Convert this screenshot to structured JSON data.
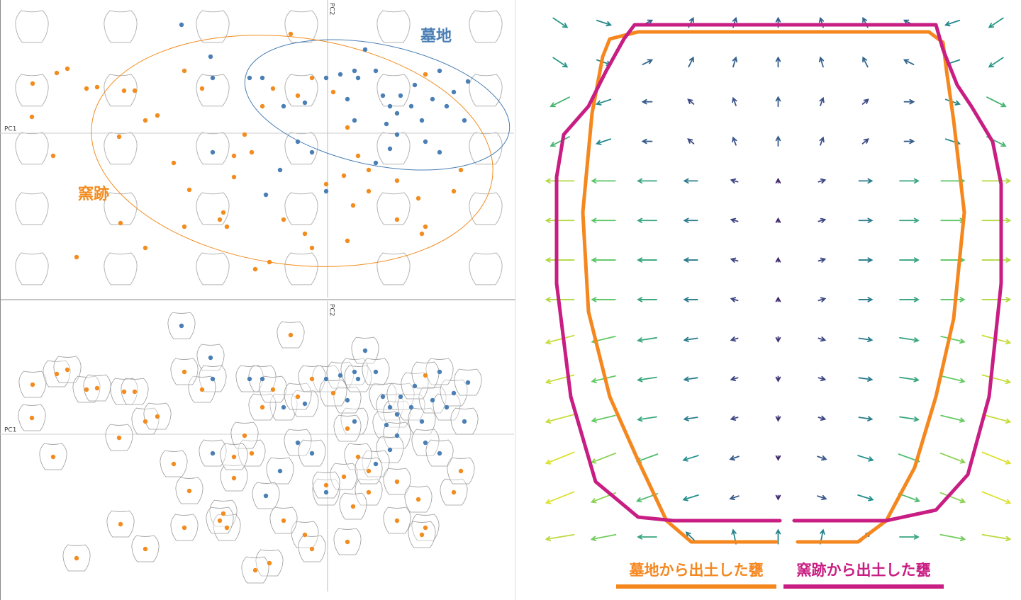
{
  "chart_data": [
    {
      "type": "scatter",
      "x_label": "PC1",
      "y_label": "PC2",
      "marker": "dot",
      "xlim": [
        -4.62,
        2.63
      ],
      "ylim": [
        -2.32,
        1.88
      ],
      "series": [
        {
          "name": "墓地",
          "color": "#4a7fb5",
          "x": [
            -2.06,
            -1.65,
            -1.62,
            -1.1,
            -0.92,
            -0.62,
            -0.32,
            -0.02,
            0.18,
            0.38,
            0.53,
            0.78,
            0.88,
            0.98,
            1.03,
            1.18,
            1.33,
            1.48,
            1.68,
            1.78,
            1.93,
            1.98,
            0.83,
            0.98,
            0.88,
            1.38,
            1.58,
            0.68,
            0.38,
            0.28,
            -0.42,
            -0.22,
            -1.62,
            -0.67,
            -0.87,
            -0.02,
            0.43,
            1.23,
            1.58,
            0.68
          ],
          "y": [
            1.53,
            1.08,
            0.78,
            0.78,
            0.78,
            0.38,
            0.43,
            0.78,
            0.83,
            0.88,
            1.18,
            0.53,
            0.38,
            0.28,
            0.53,
            0.38,
            0.18,
            0.48,
            0.38,
            0.58,
            0.18,
            0.73,
            0.13,
            -0.02,
            -0.22,
            -0.12,
            -0.27,
            -0.42,
            0.18,
            0.48,
            -0.12,
            -0.27,
            -0.27,
            -0.52,
            -0.87,
            -0.82,
            0.78,
            0.68,
            0.88,
            0.88
          ],
          "ellipse": {
            "cx": 0.7,
            "cy": 0.4,
            "rx": 1.9,
            "ry": 0.85,
            "angle": -12
          }
        },
        {
          "name": "窯跡",
          "color": "#f28c1e",
          "x": [
            -4.16,
            -4.17,
            -3.87,
            -3.82,
            -3.67,
            -3.4,
            -3.25,
            -2.87,
            -2.72,
            -2.57,
            -2.4,
            -2.94,
            -2.17,
            -1.95,
            -2.02,
            -2.92,
            -3.54,
            -2.57,
            -1.47,
            -1.42,
            -1.52,
            -1.32,
            -1.07,
            -1.17,
            -0.92,
            -0.77,
            -0.52,
            -0.42,
            -0.22,
            0.08,
            0.28,
            0.43,
            0.23,
            -0.02,
            0.58,
            0.98,
            1.28,
            1.38,
            1.33,
            0.36,
            0.28,
            -0.32,
            -0.62,
            -0.82,
            -1.02,
            -0.22,
            1.38,
            1.78,
            0.98,
            1.88,
            -1.32,
            -1.77,
            -2.02,
            0.58
          ],
          "y": [
            0.7,
            0.23,
            -0.32,
            0.85,
            0.91,
            0.63,
            0.65,
            0.6,
            0.6,
            0.18,
            0.25,
            -0.05,
            -0.42,
            -0.8,
            -1.32,
            -1.27,
            -1.75,
            -1.62,
            -1.12,
            -1.32,
            -1.22,
            -0.62,
            -0.27,
            -0.02,
            0.38,
            0.63,
            1.4,
            0.53,
            0.78,
            0.58,
            0.08,
            -0.32,
            -0.6,
            -0.72,
            -0.82,
            -0.67,
            -0.92,
            -1.32,
            -1.42,
            -1.02,
            -1.52,
            -1.42,
            -1.22,
            -1.82,
            -1.92,
            -1.62,
            0.83,
            -0.82,
            -1.22,
            -0.52,
            -0.32,
            0.63,
            0.88,
            -0.52
          ],
          "ellipse": {
            "cx": -0.5,
            "cy": -0.25,
            "rx": 2.85,
            "ry": 1.6,
            "angle": -8
          }
        }
      ]
    },
    {
      "type": "scatter",
      "x_label": "PC1",
      "y_label": "PC2",
      "marker": "jar",
      "xlim": [
        -4.62,
        2.63
      ],
      "ylim": [
        -2.22,
        1.88
      ],
      "series": [
        {
          "color": "#4a7fb5",
          "x": [
            -2.06,
            -1.65,
            -1.62,
            -1.1,
            -0.92,
            -0.62,
            -0.32,
            -0.02,
            0.18,
            0.38,
            0.53,
            0.78,
            0.88,
            0.98,
            1.03,
            1.18,
            1.33,
            1.48,
            1.68,
            1.78,
            1.93,
            1.98,
            0.83,
            0.98,
            0.88,
            1.38,
            1.58,
            0.68,
            0.38,
            0.28,
            -0.42,
            -0.22,
            -1.62,
            -0.67,
            -0.87,
            -0.02,
            0.43,
            1.23,
            1.58,
            0.68
          ],
          "y": [
            1.53,
            1.08,
            0.78,
            0.78,
            0.78,
            0.38,
            0.43,
            0.78,
            0.83,
            0.88,
            1.18,
            0.53,
            0.38,
            0.28,
            0.53,
            0.38,
            0.18,
            0.48,
            0.38,
            0.58,
            0.18,
            0.73,
            0.13,
            -0.02,
            -0.22,
            -0.12,
            -0.27,
            -0.42,
            0.18,
            0.48,
            -0.12,
            -0.27,
            -0.27,
            -0.52,
            -0.87,
            -0.82,
            0.78,
            0.68,
            0.88,
            0.88
          ]
        },
        {
          "color": "#f28c1e",
          "x": [
            -4.16,
            -4.17,
            -3.87,
            -3.82,
            -3.67,
            -3.4,
            -3.25,
            -2.87,
            -2.72,
            -2.57,
            -2.4,
            -2.94,
            -2.17,
            -1.95,
            -2.02,
            -2.92,
            -3.54,
            -2.57,
            -1.47,
            -1.42,
            -1.52,
            -1.32,
            -1.07,
            -1.17,
            -0.92,
            -0.77,
            -0.52,
            -0.42,
            -0.22,
            0.08,
            0.28,
            0.43,
            0.23,
            -0.02,
            0.58,
            0.98,
            1.28,
            1.38,
            1.33,
            0.36,
            0.28,
            -0.32,
            -0.62,
            -0.82,
            -1.02,
            -0.22,
            1.38,
            1.78,
            0.98,
            1.88,
            -1.32,
            -1.77,
            -2.02,
            0.58
          ],
          "y": [
            0.7,
            0.23,
            -0.32,
            0.85,
            0.91,
            0.63,
            0.65,
            0.6,
            0.6,
            0.18,
            0.25,
            -0.05,
            -0.42,
            -0.8,
            -1.32,
            -1.27,
            -1.75,
            -1.62,
            -1.12,
            -1.32,
            -1.22,
            -0.62,
            -0.27,
            -0.02,
            0.38,
            0.63,
            1.4,
            0.53,
            0.78,
            0.58,
            0.08,
            -0.32,
            -0.6,
            -0.72,
            -0.82,
            -0.67,
            -0.92,
            -1.32,
            -1.42,
            -1.02,
            -1.52,
            -1.42,
            -1.22,
            -1.82,
            -1.92,
            -1.62,
            0.83,
            -0.82,
            -1.22,
            -0.52,
            -0.32,
            0.63,
            0.88,
            -0.52
          ]
        }
      ]
    },
    {
      "type": "quiver",
      "xlim": [
        0,
        665
      ],
      "ylim": [
        0,
        760
      ],
      "u": [
        [
          1.5,
          1.5,
          1,
          0.5,
          0.3,
          0,
          -0.3,
          -0.5,
          -1,
          -1.5,
          -1.5
        ],
        [
          1.5,
          1.5,
          1,
          0.5,
          0.3,
          0,
          -0.3,
          -0.5,
          -1,
          -1.5,
          -1.5
        ],
        [
          -2,
          -1.5,
          -1,
          -0.6,
          -0.3,
          0,
          0.3,
          0.6,
          1,
          1.5,
          2
        ],
        [
          -2,
          -1.5,
          -1,
          -0.6,
          -0.3,
          0,
          0.3,
          0.6,
          1,
          1.5,
          2
        ],
        [
          -3,
          -2.5,
          -2,
          -1.4,
          -0.7,
          0,
          0.7,
          1.4,
          2,
          2.5,
          3
        ],
        [
          -3,
          -2.5,
          -2,
          -1.4,
          -0.7,
          0,
          0.7,
          1.4,
          2,
          2.5,
          3
        ],
        [
          -3,
          -2.5,
          -2,
          -1.4,
          -0.7,
          0,
          0.7,
          1.4,
          2,
          2.5,
          3
        ],
        [
          -3,
          -2.5,
          -2,
          -1.4,
          -0.7,
          0,
          0.7,
          1.4,
          2,
          2.5,
          3
        ],
        [
          -3,
          -2.5,
          -2,
          -1.4,
          -0.7,
          0,
          0.7,
          1.4,
          2,
          2.5,
          3
        ],
        [
          -3,
          -2.5,
          -2,
          -1.4,
          -0.7,
          0,
          0.7,
          1.4,
          2,
          2.5,
          3
        ],
        [
          -3,
          -2.5,
          -2,
          -1.4,
          -0.7,
          0,
          0.7,
          1.4,
          2,
          2.5,
          3
        ],
        [
          -3,
          -2.6,
          -2.2,
          -1.6,
          -0.9,
          0,
          0.9,
          1.6,
          2.2,
          2.6,
          3
        ],
        [
          -3,
          -2.6,
          -2.2,
          -1.6,
          -0.9,
          0,
          0.9,
          1.6,
          2.2,
          2.6,
          3
        ],
        [
          -3,
          -2.6,
          -2,
          -1,
          -0.3,
          0,
          0.3,
          1,
          2,
          2.6,
          3
        ]
      ],
      "v": [
        [
          -1,
          -0.5,
          0.5,
          1,
          1,
          1,
          1,
          1,
          0.5,
          -0.5,
          -1
        ],
        [
          -1,
          -0.5,
          0.5,
          1,
          1,
          1,
          1,
          1,
          0.5,
          -0.5,
          -1
        ],
        [
          -1,
          -0.5,
          0,
          0.5,
          0.8,
          1,
          0.8,
          0.5,
          0,
          -0.5,
          -1
        ],
        [
          -1,
          -0.5,
          0,
          0.5,
          0.8,
          1,
          0.8,
          0.5,
          0,
          -0.5,
          -1
        ],
        [
          0,
          0,
          0,
          0,
          0.2,
          0.4,
          0.2,
          0,
          0,
          0,
          0
        ],
        [
          0,
          0,
          0,
          0,
          0.2,
          0.4,
          0.2,
          0,
          0,
          0,
          0
        ],
        [
          0,
          0,
          0,
          0,
          0.2,
          0.4,
          0.2,
          0,
          0,
          0,
          0
        ],
        [
          0,
          0,
          0,
          0,
          0.2,
          0.4,
          0.2,
          0,
          0,
          0,
          0
        ],
        [
          -0.8,
          -0.6,
          -0.3,
          -0.2,
          -0.2,
          -0.5,
          -0.2,
          -0.2,
          -0.3,
          -0.6,
          -0.8
        ],
        [
          -0.8,
          -0.6,
          -0.3,
          -0.2,
          -0.2,
          -0.5,
          -0.2,
          -0.2,
          -0.3,
          -0.6,
          -0.8
        ],
        [
          -0.8,
          -0.6,
          -0.3,
          -0.2,
          -0.2,
          -0.5,
          -0.2,
          -0.2,
          -0.3,
          -0.6,
          -0.8
        ],
        [
          -1.2,
          -1,
          -0.8,
          -0.5,
          -0.3,
          -0.4,
          -0.3,
          -0.5,
          -0.8,
          -1,
          -1.2
        ],
        [
          -1.2,
          -1,
          -0.8,
          -0.5,
          -0.3,
          -0.4,
          -0.3,
          -0.5,
          -0.8,
          -1,
          -1.2
        ],
        [
          -0.5,
          -0.5,
          0,
          1,
          1.5,
          1.5,
          1.5,
          1,
          0,
          -0.5,
          -0.5
        ]
      ],
      "series": [
        {
          "name": "墓地から出土した甕",
          "color": "#f5871f",
          "x": [
            330,
            210,
            175,
            135,
            95,
            65,
            57,
            70,
            85,
            95,
            135,
            545,
            565,
            570,
            580,
            595,
            580,
            555,
            525,
            485,
            445,
            360
          ],
          "y": [
            10,
            10,
            40,
            125,
            215,
            335,
            475,
            615,
            695,
            720,
            730,
            730,
            715,
            675,
            605,
            475,
            325,
            215,
            115,
            40,
            10,
            10
          ]
        },
        {
          "name": "窯跡から出土した甕",
          "color": "#c81d82",
          "x": [
            335,
            185,
            135,
            75,
            40,
            20,
            20,
            30,
            65,
            90,
            115,
            130,
            555,
            565,
            585,
            605,
            635,
            647,
            647,
            630,
            600,
            555,
            485,
            355
          ],
          "y": [
            40,
            40,
            45,
            95,
            215,
            375,
            525,
            585,
            625,
            675,
            720,
            740,
            740,
            705,
            655,
            625,
            575,
            515,
            375,
            215,
            105,
            55,
            40,
            40
          ]
        }
      ]
    }
  ]
}
